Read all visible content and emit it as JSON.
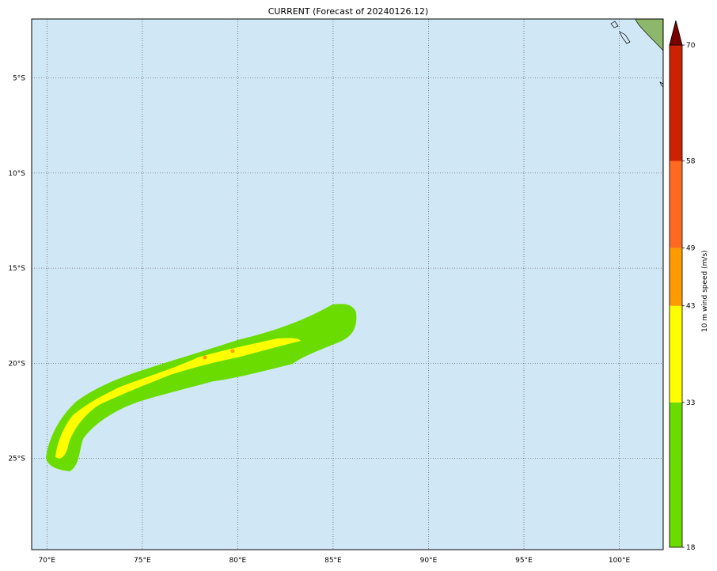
{
  "title": "CURRENT (Forecast of 20240126.12)",
  "map": {
    "ocean_color": "#d0e7f6",
    "lon_ticks": [
      {
        "lon": 70,
        "label": "70°E"
      },
      {
        "lon": 75,
        "label": "75°E"
      },
      {
        "lon": 80,
        "label": "80°E"
      },
      {
        "lon": 85,
        "label": "85°E"
      },
      {
        "lon": 90,
        "label": "90°E"
      },
      {
        "lon": 95,
        "label": "95°E"
      },
      {
        "lon": 100,
        "label": "100°E"
      }
    ],
    "lat_ticks": [
      {
        "lat": -5,
        "label": "5°S"
      },
      {
        "lat": -10,
        "label": "10°S"
      },
      {
        "lat": -15,
        "label": "15°S"
      },
      {
        "lat": -20,
        "label": "20°S"
      },
      {
        "lat": -25,
        "label": "25°S"
      }
    ],
    "lon_range": [
      69.2,
      102.3
    ],
    "lat_range": [
      -29.8,
      -1.9
    ],
    "swath_color_green": "#6bdc00",
    "swath_color_yellow": "#ffff00",
    "swath_color_orange": "#ff9a00"
  },
  "colorbar": {
    "label": "10 m wind speed (m/s)",
    "levels": [
      {
        "from": 18,
        "to": 33,
        "color": "#6bdc00"
      },
      {
        "from": 33,
        "to": 43,
        "color": "#ffff00"
      },
      {
        "from": 43,
        "to": 49,
        "color": "#ff9a00"
      },
      {
        "from": 49,
        "to": 58,
        "color": "#ff6a22"
      },
      {
        "from": 58,
        "to": 70,
        "color": "#cc2200"
      }
    ],
    "extend_color": "#7a0000",
    "tick_labels": [
      "18",
      "33",
      "43",
      "49",
      "58",
      "70"
    ]
  }
}
